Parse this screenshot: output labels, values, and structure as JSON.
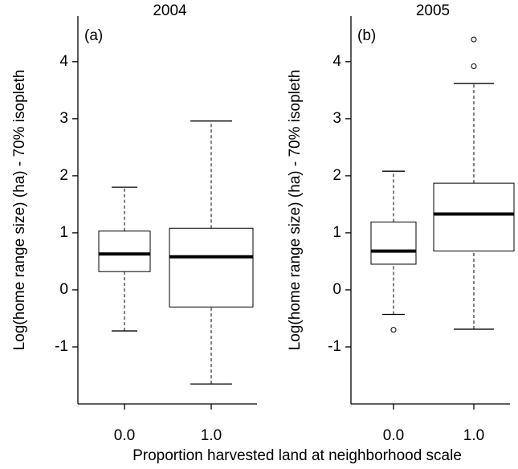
{
  "figure": {
    "xlabel": "Proportion harvested land at neighborhood scale"
  },
  "chart_data": [
    {
      "type": "box",
      "title": "2004",
      "panel_label": "(a)",
      "ylabel": "Log(home range size) (ha) - 70% isopleth",
      "categories": [
        "0.0",
        "1.0"
      ],
      "boxes": [
        {
          "min": -0.72,
          "q1": 0.32,
          "median": 0.63,
          "q3": 1.03,
          "max": 1.8,
          "outliers": []
        },
        {
          "min": -1.65,
          "q1": -0.3,
          "median": 0.58,
          "q3": 1.08,
          "max": 2.96,
          "outliers": []
        }
      ],
      "ylim": [
        -2,
        4.8
      ],
      "yticks": [
        -1,
        0,
        1,
        2,
        3,
        4
      ]
    },
    {
      "type": "box",
      "title": "2005",
      "panel_label": "(b)",
      "ylabel": "Log(home range size) (ha) - 70% isopleth",
      "categories": [
        "0.0",
        "1.0"
      ],
      "boxes": [
        {
          "min": -0.43,
          "q1": 0.45,
          "median": 0.68,
          "q3": 1.19,
          "max": 2.08,
          "outliers": [
            -0.7
          ]
        },
        {
          "min": -0.69,
          "q1": 0.68,
          "median": 1.33,
          "q3": 1.87,
          "max": 3.62,
          "outliers": [
            3.92,
            4.39
          ]
        }
      ],
      "ylim": [
        -2,
        4.8
      ],
      "yticks": [
        -1,
        0,
        1,
        2,
        3,
        4
      ]
    }
  ]
}
